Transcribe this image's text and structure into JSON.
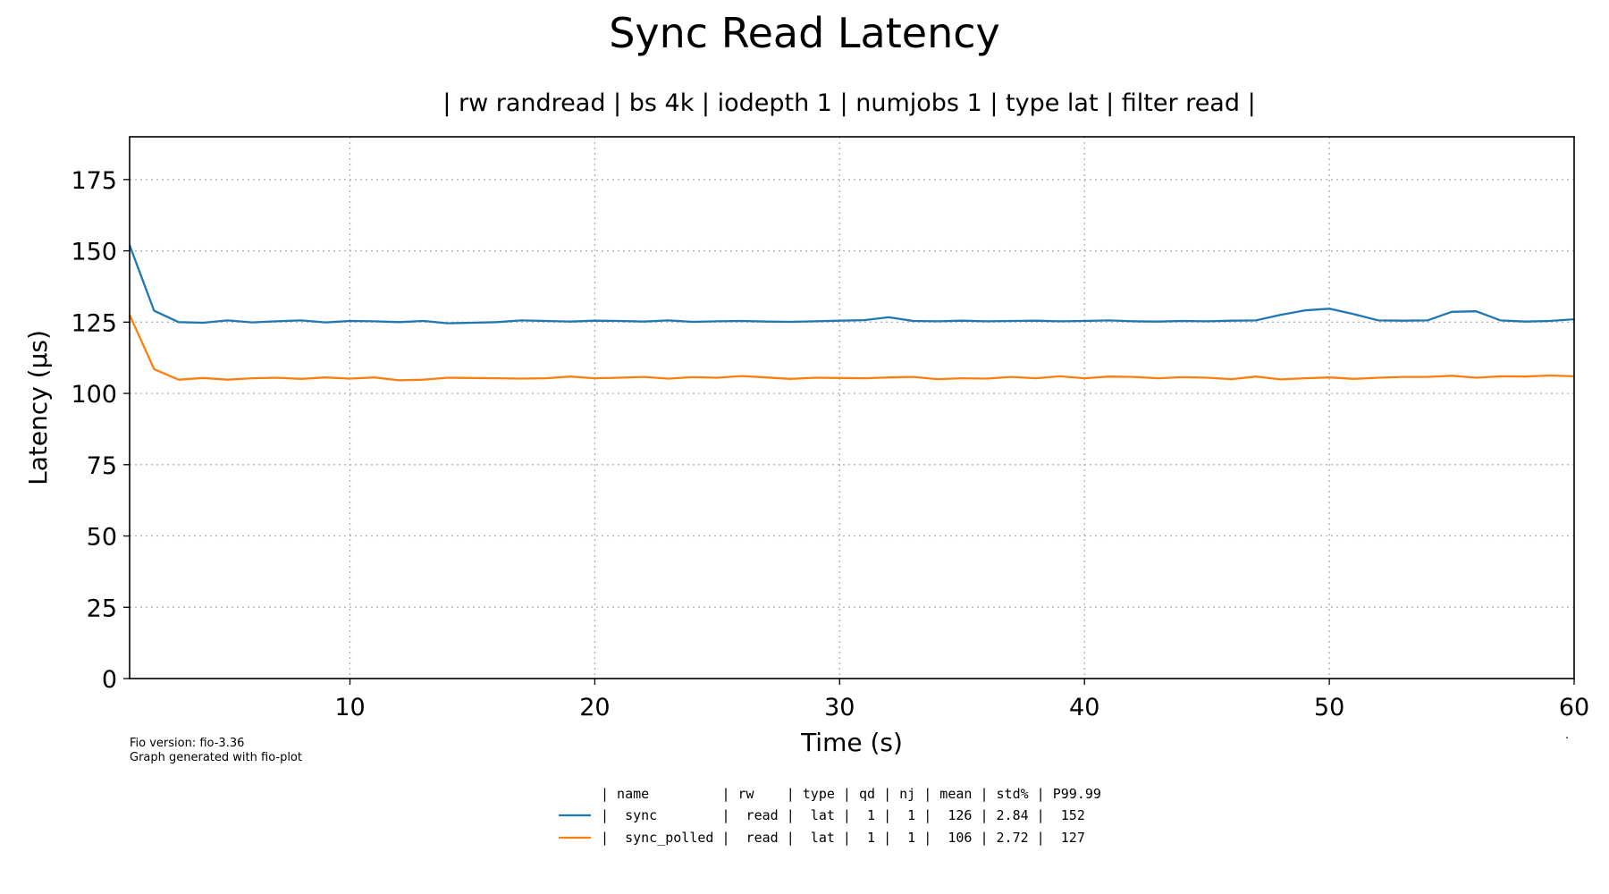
{
  "chart_data": {
    "type": "line",
    "title": "Sync Read Latency",
    "subtitle": "| rw randread | bs 4k | iodepth 1 | numjobs 1 | type lat | filter read |",
    "xlabel": "Time (s)",
    "ylabel": "Latency (µs)",
    "xlim": [
      1,
      60
    ],
    "ylim": [
      0,
      190
    ],
    "xticks": [
      10,
      20,
      30,
      40,
      50,
      60
    ],
    "yticks": [
      0,
      25,
      50,
      75,
      100,
      125,
      150,
      175
    ],
    "grid": true,
    "x": [
      1,
      2,
      3,
      4,
      5,
      6,
      7,
      8,
      9,
      10,
      11,
      12,
      13,
      14,
      15,
      16,
      17,
      18,
      19,
      20,
      21,
      22,
      23,
      24,
      25,
      26,
      27,
      28,
      29,
      30,
      31,
      32,
      33,
      34,
      35,
      36,
      37,
      38,
      39,
      40,
      41,
      42,
      43,
      44,
      45,
      46,
      47,
      48,
      49,
      50,
      51,
      52,
      53,
      54,
      55,
      56,
      57,
      58,
      59,
      60
    ],
    "series": [
      {
        "name": "sync",
        "color": "#1f77b4",
        "values": [
          152,
          129,
          125,
          124.8,
          125.6,
          124.9,
          125.3,
          125.6,
          124.9,
          125.4,
          125.3,
          125,
          125.4,
          124.6,
          124.8,
          125,
          125.6,
          125.4,
          125.2,
          125.5,
          125.4,
          125.2,
          125.6,
          125.1,
          125.3,
          125.4,
          125.2,
          125.1,
          125.3,
          125.5,
          125.7,
          126.7,
          125.4,
          125.3,
          125.5,
          125.3,
          125.4,
          125.5,
          125.3,
          125.4,
          125.6,
          125.3,
          125.2,
          125.4,
          125.3,
          125.5,
          125.6,
          127.5,
          129.1,
          129.7,
          127.8,
          125.6,
          125.5,
          125.6,
          128.6,
          128.8,
          125.6,
          125.2,
          125.4,
          126
        ]
      },
      {
        "name": "sync_polled",
        "color": "#ff7f0e",
        "values": [
          127.5,
          108.5,
          104.8,
          105.4,
          104.8,
          105.3,
          105.5,
          105.1,
          105.6,
          105.2,
          105.6,
          104.6,
          104.8,
          105.5,
          105.4,
          105.3,
          105.2,
          105.3,
          105.9,
          105.3,
          105.5,
          105.8,
          105.2,
          105.7,
          105.5,
          106.1,
          105.6,
          105.1,
          105.5,
          105.4,
          105.3,
          105.6,
          105.8,
          105,
          105.3,
          105.2,
          105.8,
          105.3,
          106,
          105.3,
          105.9,
          105.8,
          105.3,
          105.7,
          105.5,
          105,
          105.9,
          104.9,
          105.3,
          105.6,
          105.1,
          105.5,
          105.8,
          105.8,
          106.2,
          105.5,
          106,
          105.9,
          106.3,
          106
        ]
      }
    ]
  },
  "footer": {
    "fio_version": "Fio version: fio-3.36",
    "generated_by": "Graph generated with fio-plot",
    "dot": "."
  },
  "legend": {
    "header": "| name         | rw    | type | qd | nj | mean | std% | P99.99",
    "rows": [
      {
        "text": "|  sync        |  read |  lat |  1 |  1 |  126 | 2.84 |  152",
        "color": "#1f77b4"
      },
      {
        "text": "|  sync_polled |  read |  lat |  1 |  1 |  106 | 2.72 |  127",
        "color": "#ff7f0e"
      }
    ]
  }
}
